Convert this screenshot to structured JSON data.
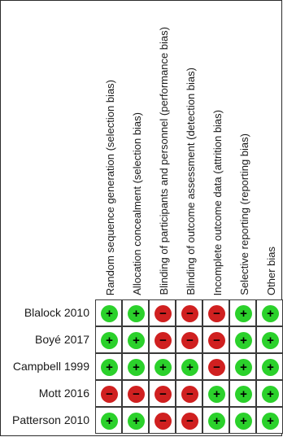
{
  "domains": [
    "Random sequence generation (selection bias)",
    "Allocation concealment (selection bias)",
    "Blinding of participants and personnel (performance bias)",
    "Blinding of outcome assessment (detection bias)",
    "Incomplete outcome data (attrition bias)",
    "Selective reporting (reporting bias)",
    "Other bias"
  ],
  "studies": [
    {
      "name": "Blalock 2010",
      "ratings": [
        "low",
        "low",
        "high",
        "high",
        "high",
        "low",
        "low"
      ]
    },
    {
      "name": "Boyé 2017",
      "ratings": [
        "low",
        "low",
        "high",
        "high",
        "high",
        "low",
        "low"
      ]
    },
    {
      "name": "Campbell 1999",
      "ratings": [
        "low",
        "low",
        "low",
        "low",
        "high",
        "low",
        "low"
      ]
    },
    {
      "name": "Mott 2016",
      "ratings": [
        "high",
        "high",
        "high",
        "high",
        "low",
        "low",
        "low"
      ]
    },
    {
      "name": "Patterson 2010",
      "ratings": [
        "low",
        "low",
        "high",
        "high",
        "low",
        "low",
        "low"
      ]
    }
  ],
  "rating_styles": {
    "low": {
      "symbol": "+",
      "color": "#2bd12b",
      "icon": "low-risk-icon"
    },
    "high": {
      "symbol": "−",
      "color": "#d02020",
      "icon": "high-risk-icon"
    }
  }
}
